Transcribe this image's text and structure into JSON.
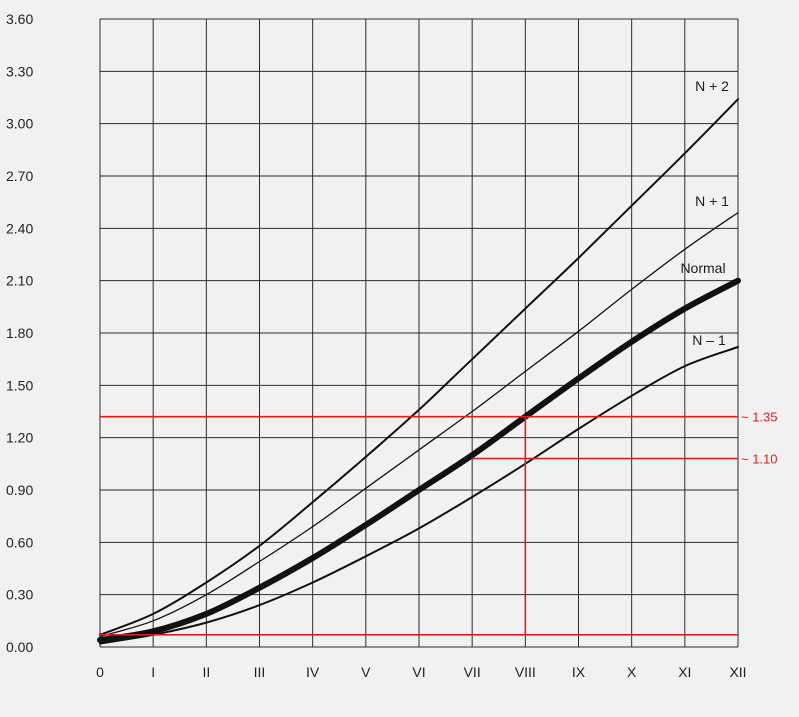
{
  "chart_data": {
    "type": "line",
    "title": "",
    "xlabel": "",
    "ylabel": "",
    "x_tick_labels": [
      "0",
      "I",
      "II",
      "III",
      "IV",
      "V",
      "VI",
      "VII",
      "VIII",
      "IX",
      "X",
      "XI",
      "XII"
    ],
    "y_tick_labels": [
      "0.00",
      "0.30",
      "0.60",
      "0.90",
      "1.20",
      "1.50",
      "1.80",
      "2.10",
      "2.40",
      "2.70",
      "3.00",
      "3.30",
      "3.60"
    ],
    "xlim": [
      0,
      12
    ],
    "ylim": [
      0,
      3.6
    ],
    "grid": true,
    "colors": {
      "grid": "#2b2b2b",
      "series": "#111111",
      "annotation": "#e21b1b"
    },
    "series": [
      {
        "name": "N + 2",
        "label": "N + 2",
        "weight": "medium",
        "x": [
          0,
          1,
          2,
          3,
          4,
          5,
          6,
          7,
          8,
          9,
          10,
          11,
          12
        ],
        "y": [
          0.07,
          0.19,
          0.37,
          0.58,
          0.83,
          1.09,
          1.36,
          1.65,
          1.94,
          2.23,
          2.53,
          2.83,
          3.14
        ]
      },
      {
        "name": "N + 1",
        "label": "N + 1",
        "weight": "thin",
        "x": [
          0,
          1,
          2,
          3,
          4,
          5,
          6,
          7,
          8,
          9,
          10,
          11,
          12
        ],
        "y": [
          0.06,
          0.15,
          0.3,
          0.49,
          0.69,
          0.91,
          1.13,
          1.35,
          1.58,
          1.81,
          2.05,
          2.28,
          2.49
        ]
      },
      {
        "name": "Normal",
        "label": "Normal",
        "weight": "thick",
        "x": [
          0,
          1,
          2,
          3,
          4,
          5,
          6,
          7,
          8,
          9,
          10,
          11,
          12
        ],
        "y": [
          0.04,
          0.09,
          0.19,
          0.34,
          0.51,
          0.7,
          0.9,
          1.1,
          1.32,
          1.54,
          1.75,
          1.94,
          2.1
        ]
      },
      {
        "name": "N - 1",
        "label": "N – 1",
        "weight": "medium",
        "x": [
          0,
          1,
          2,
          3,
          4,
          5,
          6,
          7,
          8,
          9,
          10,
          11,
          12
        ],
        "y": [
          0.02,
          0.07,
          0.14,
          0.24,
          0.37,
          0.52,
          0.68,
          0.86,
          1.05,
          1.25,
          1.44,
          1.61,
          1.72
        ]
      }
    ],
    "annotations": [
      {
        "label": "~ 1.35",
        "y": 1.32,
        "x_from": 0,
        "x_to": 12
      },
      {
        "label": "~ 1.10",
        "y": 1.08,
        "x_from": 7,
        "x_to": 12
      },
      {
        "label": "",
        "y": 0.07,
        "x_from": 0,
        "x_to": 12
      }
    ],
    "vertical_marker": {
      "x": 8,
      "y_from": 0.07,
      "y_to": 1.32
    }
  }
}
